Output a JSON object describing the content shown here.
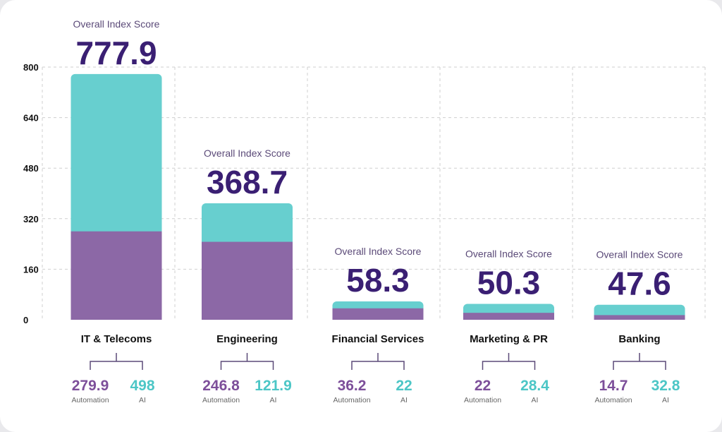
{
  "chart_data": {
    "type": "bar",
    "stacked": true,
    "categories": [
      "IT & Telecoms",
      "Engineering",
      "Financial Services",
      "Marketing & PR",
      "Banking"
    ],
    "series": [
      {
        "name": "Automation",
        "values": [
          279.9,
          246.8,
          36.2,
          22,
          14.7
        ],
        "color": "#8c68a6"
      },
      {
        "name": "AI",
        "values": [
          498,
          121.9,
          22,
          28.4,
          32.8
        ],
        "color": "#67cfcf"
      }
    ],
    "totals_label": "Overall Index Score",
    "totals": [
      "777.9",
      "368.7",
      "58.3",
      "50.3",
      "47.6"
    ],
    "value_labels": {
      "Automation": [
        "279.9",
        "246.8",
        "36.2",
        "22",
        "14.7"
      ],
      "AI": [
        "498",
        "121.9",
        "22",
        "28.4",
        "32.8"
      ]
    },
    "yticks": [
      0,
      160,
      320,
      480,
      640,
      800
    ],
    "ylim": [
      0,
      800
    ],
    "grid": true,
    "colors": {
      "total_text": "#3a1f73",
      "automation": "#7d4f9a",
      "ai": "#4cc6c6"
    }
  }
}
